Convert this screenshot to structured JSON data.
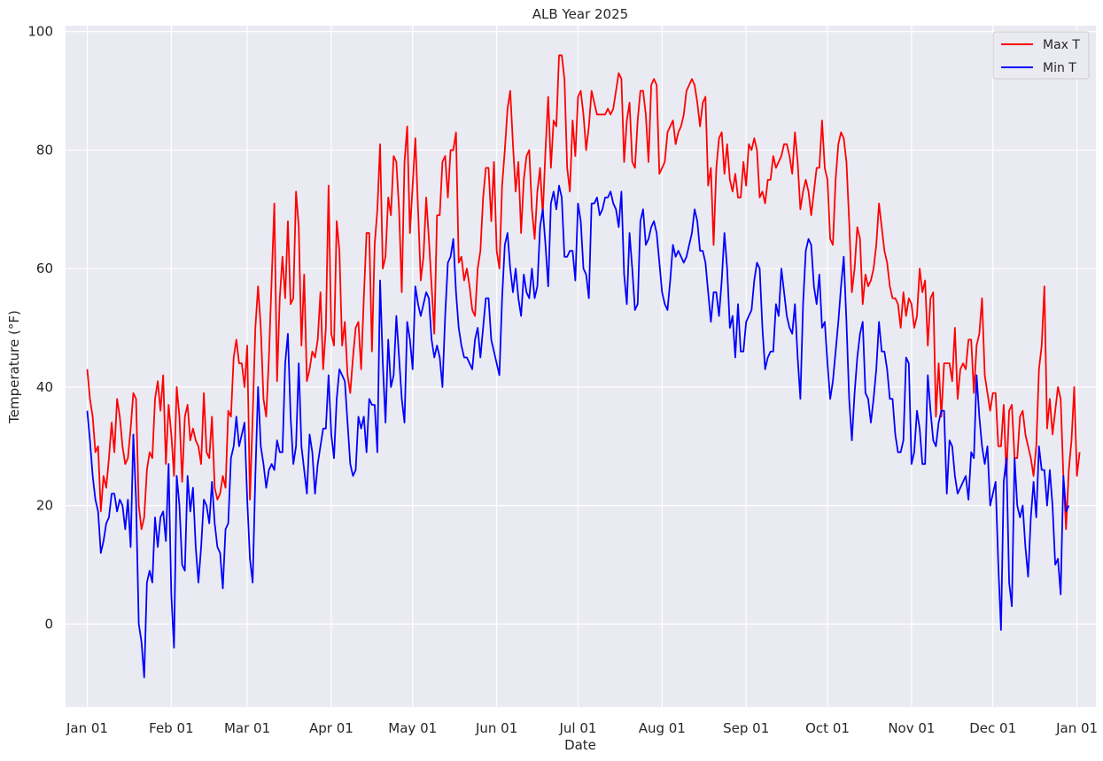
{
  "chart_data": {
    "type": "line",
    "title": "ALB Year 2025",
    "xlabel": "Date",
    "ylabel": "Temperature (°F)",
    "ylim": [
      -14,
      101
    ],
    "yticks": [
      0,
      20,
      40,
      60,
      80,
      100
    ],
    "grid": true,
    "legend_position": "top-right",
    "x_start": "2025-01-01",
    "x_end": "2025-12-31",
    "xlim_days": [
      -8,
      372
    ],
    "xticks": [
      {
        "day": 0,
        "label": "Jan 01"
      },
      {
        "day": 31,
        "label": "Feb 01"
      },
      {
        "day": 59,
        "label": "Mar 01"
      },
      {
        "day": 90,
        "label": "Apr 01"
      },
      {
        "day": 120,
        "label": "May 01"
      },
      {
        "day": 151,
        "label": "Jun 01"
      },
      {
        "day": 181,
        "label": "Jul 01"
      },
      {
        "day": 212,
        "label": "Aug 01"
      },
      {
        "day": 243,
        "label": "Sep 01"
      },
      {
        "day": 273,
        "label": "Oct 01"
      },
      {
        "day": 304,
        "label": "Nov 01"
      },
      {
        "day": 334,
        "label": "Dec 01"
      },
      {
        "day": 365,
        "label": "Jan 01"
      }
    ],
    "series": [
      {
        "name": "Max T",
        "color": "#ff0000",
        "values": [
          43,
          38,
          35,
          29,
          30,
          19,
          25,
          23,
          28,
          34,
          29,
          38,
          35,
          30,
          27,
          28,
          33,
          39,
          38,
          20,
          16,
          18,
          26,
          29,
          28,
          38,
          41,
          36,
          42,
          27,
          37,
          32,
          25,
          40,
          35,
          24,
          35,
          37,
          31,
          33,
          31,
          30,
          27,
          39,
          29,
          28,
          35,
          23,
          21,
          22,
          25,
          23,
          36,
          35,
          45,
          48,
          44,
          44,
          40,
          47,
          21,
          35,
          50,
          57,
          50,
          38,
          35,
          45,
          58,
          71,
          41,
          55,
          62,
          55,
          68,
          54,
          55,
          73,
          67,
          47,
          59,
          41,
          43,
          46,
          45,
          48,
          56,
          43,
          50,
          74,
          49,
          47,
          68,
          63,
          47,
          51,
          42,
          39,
          45,
          50,
          51,
          43,
          55,
          66,
          66,
          46,
          64,
          70,
          81,
          60,
          62,
          72,
          69,
          79,
          78,
          70,
          56,
          78,
          84,
          66,
          74,
          82,
          70,
          58,
          62,
          72,
          65,
          57,
          49,
          69,
          69,
          78,
          79,
          72,
          80,
          80,
          83,
          61,
          62,
          58,
          60,
          57,
          53,
          52,
          60,
          63,
          72,
          77,
          77,
          68,
          78,
          63,
          60,
          74,
          80,
          87,
          90,
          81,
          73,
          78,
          66,
          75,
          79,
          80,
          70,
          65,
          73,
          77,
          69,
          80,
          89,
          77,
          85,
          84,
          96,
          96,
          92,
          77,
          73,
          85,
          79,
          89,
          90,
          86,
          80,
          84,
          90,
          88,
          86,
          86,
          86,
          86,
          87,
          86,
          87,
          90,
          93,
          92,
          78,
          85,
          88,
          78,
          77,
          85,
          90,
          90,
          86,
          78,
          91,
          92,
          91,
          76,
          77,
          78,
          83,
          84,
          85,
          81,
          83,
          84,
          86,
          90,
          91,
          92,
          91,
          88,
          84,
          88,
          89,
          74,
          77,
          64,
          77,
          82,
          83,
          76,
          81,
          75,
          73,
          76,
          72,
          72,
          78,
          74,
          81,
          80,
          82,
          80,
          72,
          73,
          71,
          75,
          75,
          79,
          77,
          78,
          79,
          81,
          81,
          79,
          76,
          83,
          78,
          70,
          73,
          75,
          73,
          69,
          73,
          77,
          77,
          85,
          77,
          75,
          65,
          64,
          75,
          81,
          83,
          82,
          78,
          68,
          56,
          60,
          67,
          65,
          54,
          59,
          57,
          58,
          60,
          64,
          71,
          67,
          63,
          61,
          57,
          55,
          55,
          54,
          50,
          56,
          52,
          55,
          54,
          50,
          52,
          60,
          56,
          58,
          47,
          55,
          56,
          35,
          44,
          35,
          44,
          44,
          44,
          41,
          50,
          38,
          43,
          44,
          43,
          48,
          48,
          39,
          47,
          49,
          55,
          42,
          39,
          36,
          39,
          39,
          30,
          30,
          37,
          25,
          36,
          37,
          28,
          28,
          35,
          36,
          32,
          30,
          28,
          25,
          30,
          43,
          47,
          57,
          33,
          38,
          32,
          36,
          40,
          38,
          25,
          16,
          26,
          31,
          40,
          25,
          29
        ]
      },
      {
        "name": "Min T",
        "color": "#0000ff",
        "values": [
          36,
          31,
          25,
          21,
          19,
          12,
          14,
          17,
          18,
          22,
          22,
          19,
          21,
          20,
          16,
          21,
          13,
          32,
          21,
          0,
          -3,
          -9,
          7,
          9,
          7,
          18,
          13,
          18,
          19,
          14,
          27,
          5,
          -4,
          25,
          20,
          10,
          9,
          25,
          19,
          23,
          13,
          7,
          13,
          21,
          20,
          17,
          24,
          17,
          13,
          12,
          6,
          16,
          17,
          28,
          30,
          35,
          30,
          32,
          34,
          21,
          11,
          7,
          25,
          40,
          30,
          27,
          23,
          26,
          27,
          26,
          31,
          29,
          29,
          44,
          49,
          35,
          27,
          30,
          44,
          30,
          26,
          22,
          32,
          29,
          22,
          27,
          30,
          33,
          33,
          42,
          32,
          28,
          38,
          43,
          42,
          41,
          34,
          27,
          25,
          26,
          35,
          33,
          35,
          29,
          38,
          37,
          37,
          29,
          58,
          44,
          34,
          48,
          40,
          42,
          52,
          45,
          38,
          34,
          51,
          48,
          43,
          57,
          54,
          52,
          54,
          56,
          55,
          48,
          45,
          47,
          45,
          40,
          52,
          61,
          62,
          65,
          56,
          50,
          47,
          45,
          45,
          44,
          43,
          48,
          50,
          45,
          50,
          55,
          55,
          48,
          46,
          44,
          42,
          55,
          64,
          66,
          60,
          56,
          60,
          55,
          52,
          59,
          56,
          55,
          60,
          55,
          57,
          67,
          70,
          64,
          57,
          71,
          73,
          70,
          74,
          72,
          62,
          62,
          63,
          63,
          58,
          71,
          68,
          60,
          59,
          55,
          71,
          71,
          72,
          69,
          70,
          72,
          72,
          73,
          71,
          70,
          67,
          73,
          59,
          54,
          66,
          60,
          53,
          54,
          68,
          70,
          64,
          65,
          67,
          68,
          66,
          61,
          56,
          54,
          53,
          58,
          64,
          62,
          63,
          62,
          61,
          62,
          64,
          66,
          70,
          68,
          63,
          63,
          61,
          56,
          51,
          56,
          56,
          52,
          58,
          66,
          60,
          50,
          52,
          45,
          54,
          46,
          46,
          51,
          52,
          53,
          58,
          61,
          60,
          50,
          43,
          45,
          46,
          46,
          54,
          52,
          60,
          56,
          52,
          50,
          49,
          54,
          45,
          38,
          54,
          63,
          65,
          64,
          57,
          54,
          59,
          50,
          51,
          44,
          38,
          41,
          46,
          51,
          57,
          62,
          51,
          38,
          31,
          39,
          45,
          49,
          51,
          39,
          38,
          34,
          38,
          43,
          51,
          46,
          46,
          43,
          38,
          38,
          32,
          29,
          29,
          31,
          45,
          44,
          27,
          29,
          36,
          33,
          27,
          27,
          42,
          36,
          31,
          30,
          34,
          36,
          36,
          22,
          31,
          30,
          25,
          22,
          23,
          24,
          25,
          21,
          29,
          28,
          42,
          35,
          30,
          27,
          30,
          20,
          22,
          24,
          10,
          -1,
          24,
          28,
          7,
          3,
          28,
          20,
          18,
          20,
          13,
          8,
          18,
          24,
          18,
          30,
          26,
          26,
          20,
          26,
          20,
          10,
          11,
          5,
          25,
          19,
          20
        ]
      }
    ]
  }
}
